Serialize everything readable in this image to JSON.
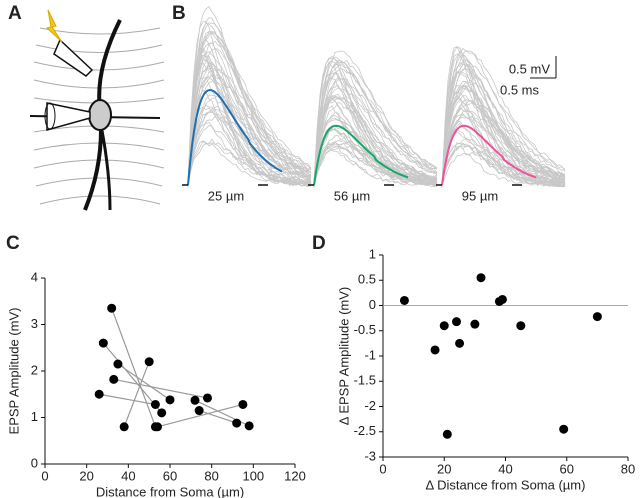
{
  "panels": [
    "A",
    "B",
    "C",
    "D"
  ],
  "traces": {
    "labels": [
      "25 µm",
      "56 µm",
      "95 µm"
    ],
    "colors": [
      "#1f6fb5",
      "#1aa56a",
      "#e8559a"
    ],
    "scale_labels": [
      "0.5 mV",
      "0.5 ms"
    ]
  },
  "chart_data": [
    {
      "type": "scatter",
      "xlabel": "Distance from Soma (µm)",
      "ylabel": "EPSP Amplitude (mV)",
      "xlim": [
        0,
        120
      ],
      "xticks": [
        0,
        20,
        40,
        60,
        80,
        100,
        120
      ],
      "ylim": [
        0,
        4
      ],
      "yticks": [
        0,
        1,
        2,
        3,
        4
      ],
      "color": "#000000",
      "line_color": "#999999",
      "series": [
        {
          "x": [
            32,
            53
          ],
          "values": [
            3.35,
            0.8
          ]
        },
        {
          "x": [
            28,
            56
          ],
          "values": [
            2.6,
            1.1
          ]
        },
        {
          "x": [
            26,
            53
          ],
          "values": [
            1.5,
            1.28
          ]
        },
        {
          "x": [
            38,
            50
          ],
          "values": [
            0.8,
            2.2
          ]
        },
        {
          "x": [
            33,
            78
          ],
          "values": [
            1.82,
            1.42
          ]
        },
        {
          "x": [
            35,
            60
          ],
          "values": [
            2.15,
            1.38
          ]
        },
        {
          "x": [
            54,
            95
          ],
          "values": [
            0.8,
            1.28
          ]
        },
        {
          "x": [
            72,
            98
          ],
          "values": [
            1.37,
            0.82
          ]
        },
        {
          "x": [
            74,
            92
          ],
          "values": [
            1.15,
            0.88
          ]
        }
      ]
    },
    {
      "type": "scatter",
      "xlabel": "Δ Distance from Soma (µm)",
      "ylabel": "Δ EPSP Amplitude (mV)",
      "xlim": [
        0,
        80
      ],
      "xticks": [
        0,
        20,
        40,
        60,
        80
      ],
      "ylim": [
        -3,
        1
      ],
      "yticks": [
        1,
        0.5,
        0,
        -0.5,
        -1,
        -1.5,
        -2,
        -2.5,
        -3
      ],
      "zero_line": true,
      "color": "#000000",
      "line_color": "#aaaaaa",
      "series": [
        {
          "x": [
            7,
            17,
            20,
            21,
            24,
            25,
            30,
            32,
            38,
            39,
            45,
            59,
            70
          ],
          "values": [
            0.1,
            -0.88,
            -0.4,
            -2.55,
            -0.32,
            -0.75,
            -0.37,
            0.55,
            0.08,
            0.12,
            -0.4,
            -2.45,
            -0.22
          ]
        }
      ]
    }
  ]
}
